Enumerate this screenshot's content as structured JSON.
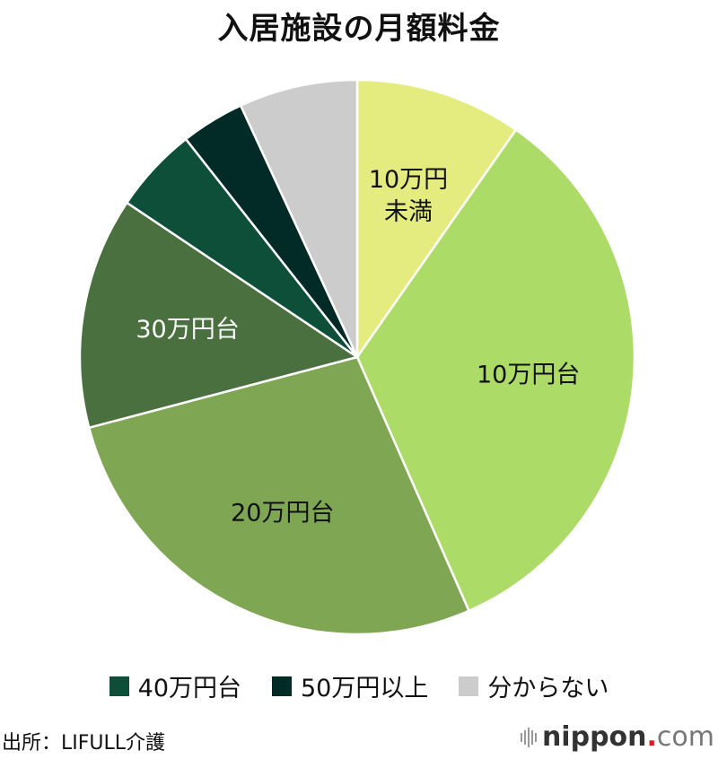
{
  "title": "入居施設の月額料金",
  "chart_data": {
    "type": "pie",
    "title": "入居施設の月額料金",
    "start_angle": "12 o'clock, clockwise",
    "categories": [
      "10万円未満",
      "10万円台",
      "20万円台",
      "30万円台",
      "40万円台",
      "50万円以上",
      "分からない"
    ],
    "values": [
      9.7,
      33.7,
      27.5,
      13.5,
      5.0,
      3.7,
      6.9
    ],
    "unit": "% (estimated from slice angles)",
    "colors": [
      "#e4ec80",
      "#addb68",
      "#7fa653",
      "#4a7040",
      "#0e4f3a",
      "#022a26",
      "#cccccc"
    ],
    "slice_labels": [
      {
        "lines": [
          "10万円",
          "未満"
        ],
        "color": "#111111"
      },
      {
        "lines": [
          "10万円台"
        ],
        "color": "#111111"
      },
      {
        "lines": [
          "20万円台"
        ],
        "color": "#111111"
      },
      {
        "lines": [
          "30万円台"
        ],
        "color": "#ffffff"
      },
      {
        "lines": [],
        "color": "#ffffff"
      },
      {
        "lines": [],
        "color": "#ffffff"
      },
      {
        "lines": [],
        "color": "#111111"
      }
    ],
    "legend": [
      "40万円台",
      "50万円以上",
      "分からない"
    ],
    "legend_position": "bottom"
  },
  "legend": [
    {
      "label": "40万円台",
      "color": "#0e4f3a"
    },
    {
      "label": "50万円以上",
      "color": "#022a26"
    },
    {
      "label": "分からない",
      "color": "#cccccc"
    }
  ],
  "footer": {
    "source": "出所：LIFULL介護",
    "brand_name": "nippon",
    "brand_dot": ".",
    "brand_tld": "com"
  }
}
